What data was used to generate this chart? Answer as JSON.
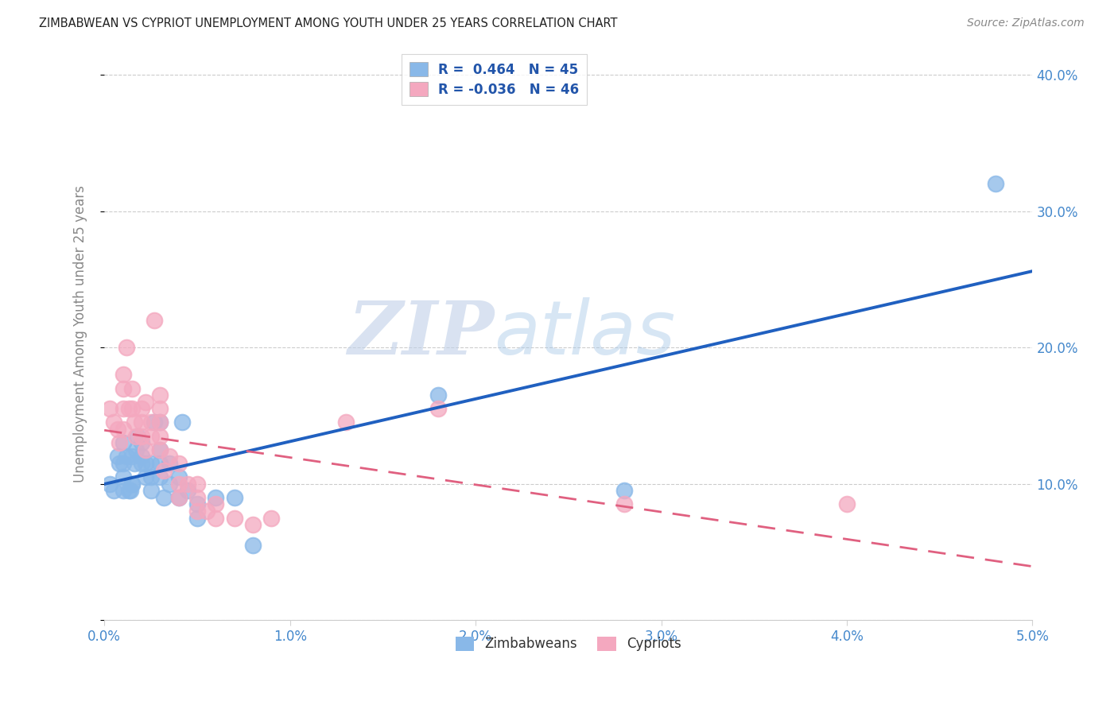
{
  "title": "ZIMBABWEAN VS CYPRIOT UNEMPLOYMENT AMONG YOUTH UNDER 25 YEARS CORRELATION CHART",
  "source": "Source: ZipAtlas.com",
  "ylabel": "Unemployment Among Youth under 25 years",
  "xlim": [
    0.0,
    0.05
  ],
  "ylim": [
    0.0,
    0.42
  ],
  "xticks": [
    0.0,
    0.01,
    0.02,
    0.03,
    0.04,
    0.05
  ],
  "xtick_labels": [
    "0.0%",
    "1.0%",
    "2.0%",
    "3.0%",
    "4.0%",
    "5.0%"
  ],
  "yticks": [
    0.0,
    0.1,
    0.2,
    0.3,
    0.4
  ],
  "ytick_labels": [
    "",
    "10.0%",
    "20.0%",
    "30.0%",
    "40.0%"
  ],
  "zim_color": "#89b8e8",
  "cyp_color": "#f4a8bf",
  "zim_line_color": "#2060c0",
  "cyp_line_color": "#e06080",
  "watermark_zip": "ZIP",
  "watermark_atlas": "atlas",
  "legend_label_zim": "R =  0.464   N = 45",
  "legend_label_cyp": "R = -0.036   N = 46",
  "zim_scatter_x": [
    0.0003,
    0.0005,
    0.0007,
    0.0008,
    0.001,
    0.001,
    0.001,
    0.001,
    0.0012,
    0.0013,
    0.0014,
    0.0015,
    0.0015,
    0.0015,
    0.0016,
    0.0017,
    0.0018,
    0.002,
    0.002,
    0.002,
    0.0022,
    0.0022,
    0.0025,
    0.0025,
    0.0025,
    0.0027,
    0.003,
    0.003,
    0.003,
    0.003,
    0.0032,
    0.0035,
    0.0035,
    0.004,
    0.004,
    0.0042,
    0.0045,
    0.005,
    0.005,
    0.006,
    0.007,
    0.008,
    0.018,
    0.028,
    0.048
  ],
  "zim_scatter_y": [
    0.1,
    0.095,
    0.12,
    0.115,
    0.13,
    0.115,
    0.105,
    0.095,
    0.12,
    0.095,
    0.095,
    0.1,
    0.12,
    0.1,
    0.115,
    0.125,
    0.135,
    0.13,
    0.12,
    0.115,
    0.115,
    0.105,
    0.095,
    0.105,
    0.115,
    0.145,
    0.105,
    0.115,
    0.125,
    0.145,
    0.09,
    0.1,
    0.115,
    0.09,
    0.105,
    0.145,
    0.095,
    0.085,
    0.075,
    0.09,
    0.09,
    0.055,
    0.165,
    0.095,
    0.32
  ],
  "cyp_scatter_x": [
    0.0003,
    0.0005,
    0.0007,
    0.0008,
    0.001,
    0.001,
    0.001,
    0.001,
    0.0012,
    0.0013,
    0.0015,
    0.0015,
    0.0016,
    0.0017,
    0.002,
    0.002,
    0.002,
    0.0022,
    0.0022,
    0.0025,
    0.0025,
    0.0027,
    0.003,
    0.003,
    0.003,
    0.003,
    0.003,
    0.0032,
    0.0035,
    0.004,
    0.004,
    0.004,
    0.0045,
    0.005,
    0.005,
    0.005,
    0.0055,
    0.006,
    0.006,
    0.007,
    0.008,
    0.009,
    0.013,
    0.018,
    0.028,
    0.04
  ],
  "cyp_scatter_y": [
    0.155,
    0.145,
    0.14,
    0.13,
    0.18,
    0.17,
    0.155,
    0.14,
    0.2,
    0.155,
    0.17,
    0.155,
    0.145,
    0.135,
    0.155,
    0.145,
    0.135,
    0.125,
    0.16,
    0.145,
    0.135,
    0.22,
    0.125,
    0.135,
    0.145,
    0.155,
    0.165,
    0.11,
    0.12,
    0.1,
    0.115,
    0.09,
    0.1,
    0.08,
    0.09,
    0.1,
    0.08,
    0.075,
    0.085,
    0.075,
    0.07,
    0.075,
    0.145,
    0.155,
    0.085,
    0.085
  ]
}
